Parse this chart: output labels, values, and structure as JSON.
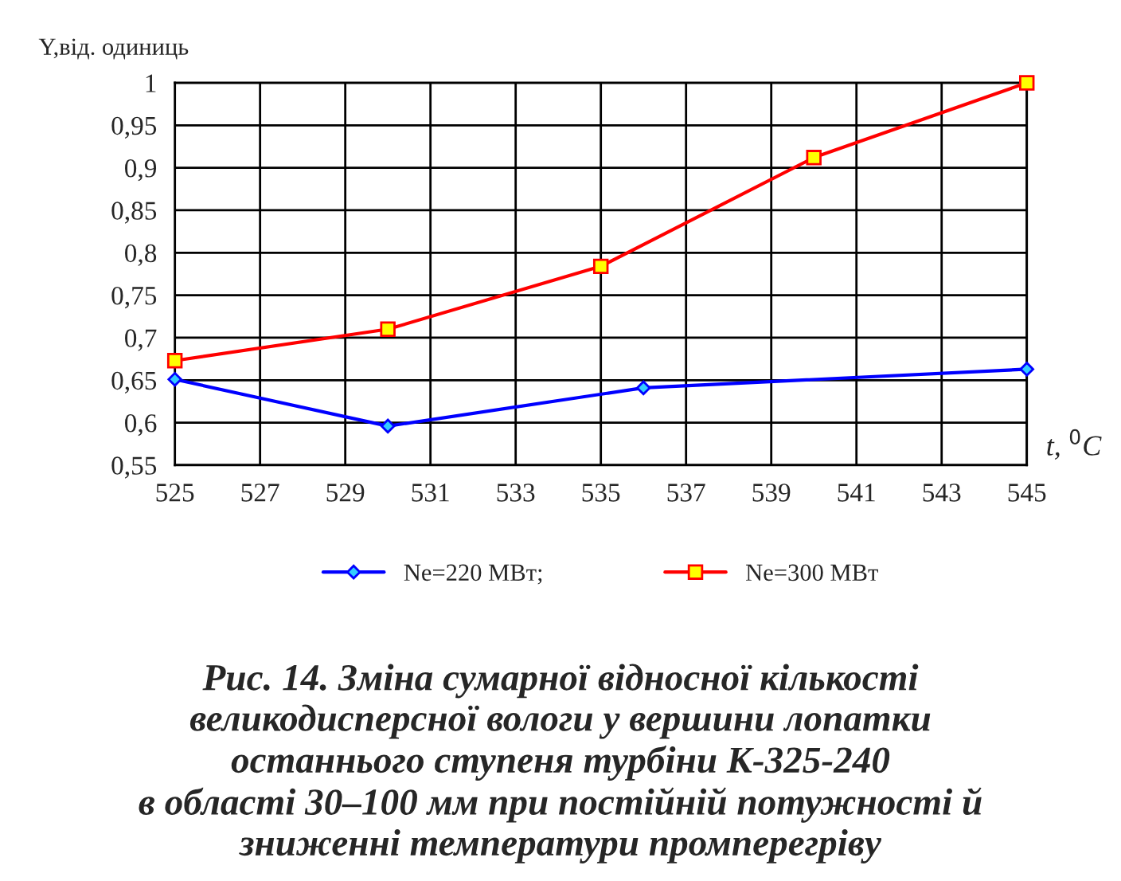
{
  "chart_data": {
    "type": "line",
    "xlabel": "t, $^{0}$C",
    "ylabel": "Y,від. одиниць",
    "series": [
      {
        "name": "Ne=220 МВт;",
        "color": "#0000ff",
        "x": [
          525,
          530,
          536,
          545
        ],
        "values": [
          0.651,
          0.596,
          0.641,
          0.663
        ],
        "marker": "diamond"
      },
      {
        "name": "Ne=300 МВт",
        "color": "#ff0000",
        "x": [
          525,
          530,
          535,
          540,
          545
        ],
        "values": [
          0.673,
          0.71,
          0.784,
          0.912,
          1.0
        ],
        "marker": "square"
      }
    ],
    "xlim": [
      525,
      545
    ],
    "xticks": [
      525,
      527,
      529,
      531,
      533,
      535,
      537,
      539,
      541,
      543,
      545
    ],
    "ylim": [
      0.55,
      1
    ],
    "yticks": [
      {
        "value": 0.55,
        "label": "0,55"
      },
      {
        "value": 0.6,
        "label": "0,6"
      },
      {
        "value": 0.65,
        "label": "0,65"
      },
      {
        "value": 0.7,
        "label": "0,7"
      },
      {
        "value": 0.75,
        "label": "0,75"
      },
      {
        "value": 0.8,
        "label": "0,8"
      },
      {
        "value": 0.85,
        "label": "0,85"
      },
      {
        "value": 0.9,
        "label": "0,9"
      },
      {
        "value": 0.95,
        "label": "0,95"
      },
      {
        "value": 1,
        "label": "1"
      }
    ],
    "grid": true,
    "legend": "bottom",
    "line_style": "solid",
    "annotations": [
      "Рис. 14. Зміна сумарної відносної кількості\nвеликодисперсної вологи у вершини лопатки\nостаннього ступеня турбіни К-325-240\nв області 30–100 мм при постійній потужності й\nзниженні температури промперегріву"
    ]
  }
}
